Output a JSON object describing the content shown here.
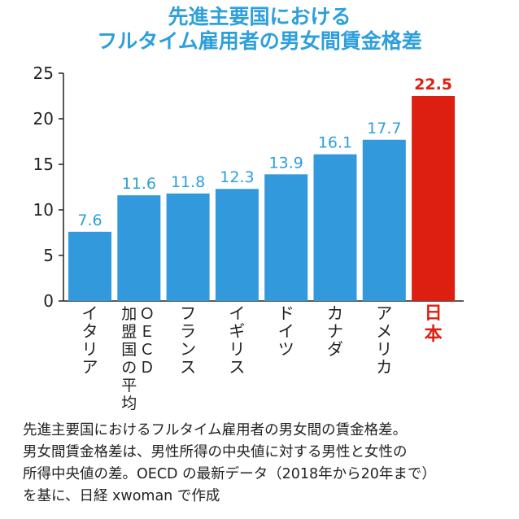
{
  "title_line1": "先進主要国における",
  "title_line2": "フルタイム雇用者の男女間賃金格差",
  "caption_lines": [
    "先進主要国におけるフルタイム雇用者の男女間の賃金格差。",
    "男女間賃金格差は、男性所得の中央値に対する男性と女性の",
    "所得中央値の差。OECD の最新データ（2018年から20年まで）",
    "を基に、日経 xwoman で作成"
  ],
  "colors": {
    "bar": "#3399dd",
    "highlight": "#dd1f12",
    "label": "#2d9fdc",
    "highlight_label": "#dd1f12",
    "axis": "#222222"
  },
  "chart_data": {
    "type": "bar",
    "categories": [
      "イタリア",
      "ＯＥＣＤ加盟国の平均",
      "フランス",
      "イギリス",
      "ドイツ",
      "カナダ",
      "アメリカ",
      "日本"
    ],
    "values": [
      7.6,
      11.6,
      11.8,
      12.3,
      13.9,
      16.1,
      17.7,
      22.5
    ],
    "value_labels": [
      "7.6",
      "11.6",
      "11.8",
      "12.3",
      "13.9",
      "16.1",
      "17.7",
      "22.5"
    ],
    "highlight": [
      "日本"
    ],
    "ylim": [
      0,
      25
    ],
    "yticks": [
      0,
      5,
      10,
      15,
      20,
      25
    ],
    "grid": false,
    "xlabel": "",
    "ylabel": ""
  }
}
